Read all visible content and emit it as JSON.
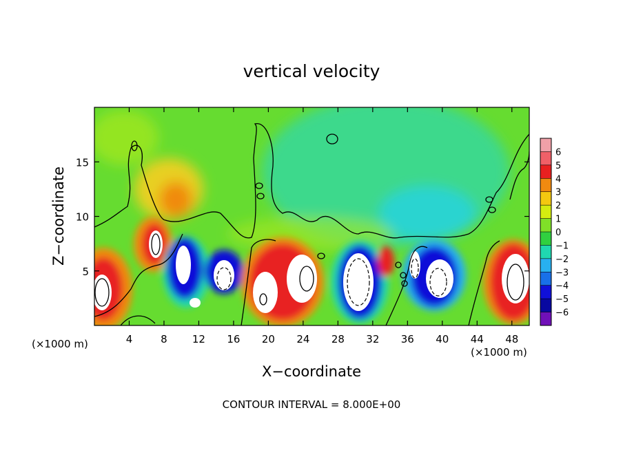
{
  "chart_data": {
    "type": "heatmap",
    "title": "vertical velocity",
    "xlabel": "X−coordinate",
    "ylabel": "Z−coordinate",
    "x_unit_left": "(×1000 m)",
    "x_unit_right": "(×1000 m)",
    "xlim": [
      0,
      50
    ],
    "ylim": [
      0,
      20
    ],
    "x_ticks": [
      4,
      8,
      12,
      16,
      20,
      24,
      28,
      32,
      36,
      40,
      44,
      48
    ],
    "y_ticks": [
      5,
      10,
      15
    ],
    "grid": false,
    "colorbar": {
      "placement": "right",
      "levels": [
        "6",
        "5",
        "4",
        "3",
        "2",
        "1",
        "0",
        "−1",
        "−2",
        "−3",
        "−4",
        "−5",
        "−6"
      ],
      "colors": [
        "#f0a0a8",
        "#f06068",
        "#e82020",
        "#f08a10",
        "#f4c810",
        "#d4ec10",
        "#80e028",
        "#30d040",
        "#20d8b0",
        "#28b0f0",
        "#1870e8",
        "#1010d8",
        "#0808a0",
        "#7010b8"
      ]
    },
    "footer": "CONTOUR INTERVAL = 8.000E+00",
    "contour_interval": 8.0,
    "cells": [
      {
        "x": 1.5,
        "z": 3.5,
        "w": 6
      },
      {
        "x": 6.5,
        "z": 7.5,
        "w": 6
      },
      {
        "x": 10.0,
        "z": 11.5,
        "w": 3
      },
      {
        "x": 10.5,
        "z": 5.0,
        "w": -5
      },
      {
        "x": 11.5,
        "z": 2.0,
        "w": 6
      },
      {
        "x": 15.0,
        "z": 4.5,
        "w": -5
      },
      {
        "x": 20.0,
        "z": 3.5,
        "w": 6
      },
      {
        "x": 24.5,
        "z": 4.5,
        "w": 6
      },
      {
        "x": 29.5,
        "z": 4.0,
        "w": -5
      },
      {
        "x": 33.5,
        "z": 5.5,
        "w": 4
      },
      {
        "x": 38.0,
        "z": 4.5,
        "w": -5
      },
      {
        "x": 48.0,
        "z": 4.0,
        "w": 6
      },
      {
        "x": 37.0,
        "z": 9.5,
        "w": -2
      }
    ]
  }
}
